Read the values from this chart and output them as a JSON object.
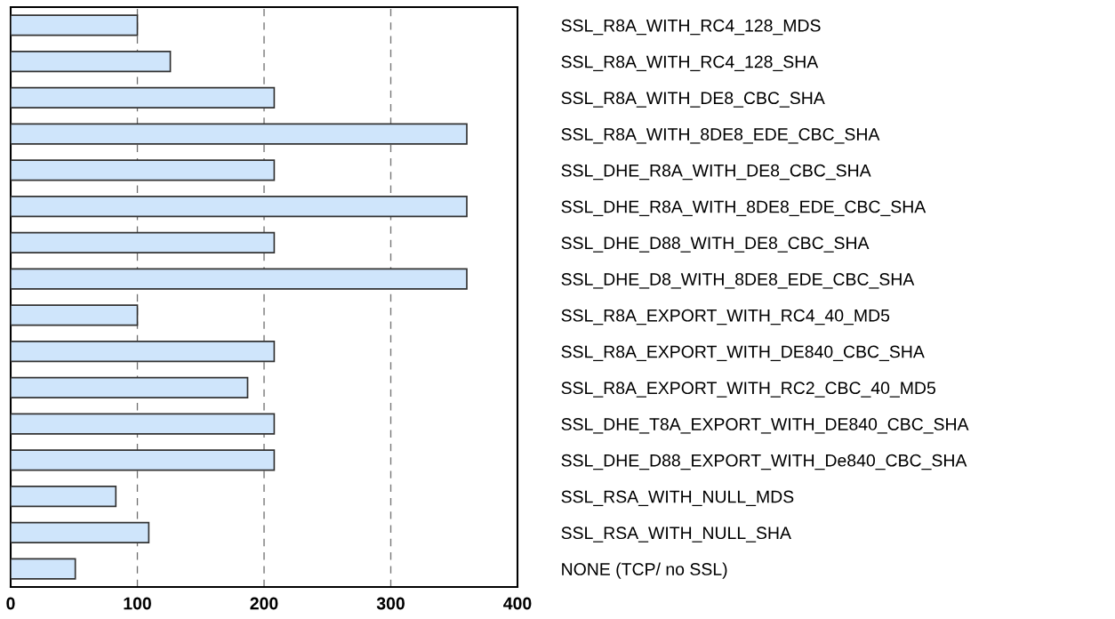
{
  "chart_data": {
    "type": "bar",
    "orientation": "horizontal",
    "categories": [
      "SSL_R8A_WITH_RC4_128_MDS",
      "SSL_R8A_WITH_RC4_128_SHA",
      "SSL_R8A_WITH_DE8_CBC_SHA",
      "SSL_R8A_WITH_8DE8_EDE_CBC_SHA",
      "SSL_DHE_R8A_WITH_DE8_CBC_SHA",
      "SSL_DHE_R8A_WITH_8DE8_EDE_CBC_SHA",
      "SSL_DHE_D88_WITH_DE8_CBC_SHA",
      "SSL_DHE_D8_WITH_8DE8_EDE_CBC_SHA",
      "SSL_R8A_EXPORT_WITH_RC4_40_MD5",
      "SSL_R8A_EXPORT_WITH_DE840_CBC_SHA",
      "SSL_R8A_EXPORT_WITH_RC2_CBC_40_MD5",
      "SSL_DHE_T8A_EXPORT_WITH_DE840_CBC_SHA",
      "SSL_DHE_D88_EXPORT_WITH_De840_CBC_SHA",
      "SSL_RSA_WITH_NULL_MDS",
      "SSL_RSA_WITH_NULL_SHA",
      "NONE (TCP/ no SSL)"
    ],
    "values": [
      100,
      126,
      208,
      360,
      208,
      360,
      208,
      360,
      100,
      208,
      187,
      208,
      208,
      83,
      109,
      51
    ],
    "color": "#cfe5fb",
    "xlim": [
      0,
      400
    ],
    "xticks": [
      0,
      100,
      200,
      300,
      400
    ],
    "grid": "x"
  }
}
